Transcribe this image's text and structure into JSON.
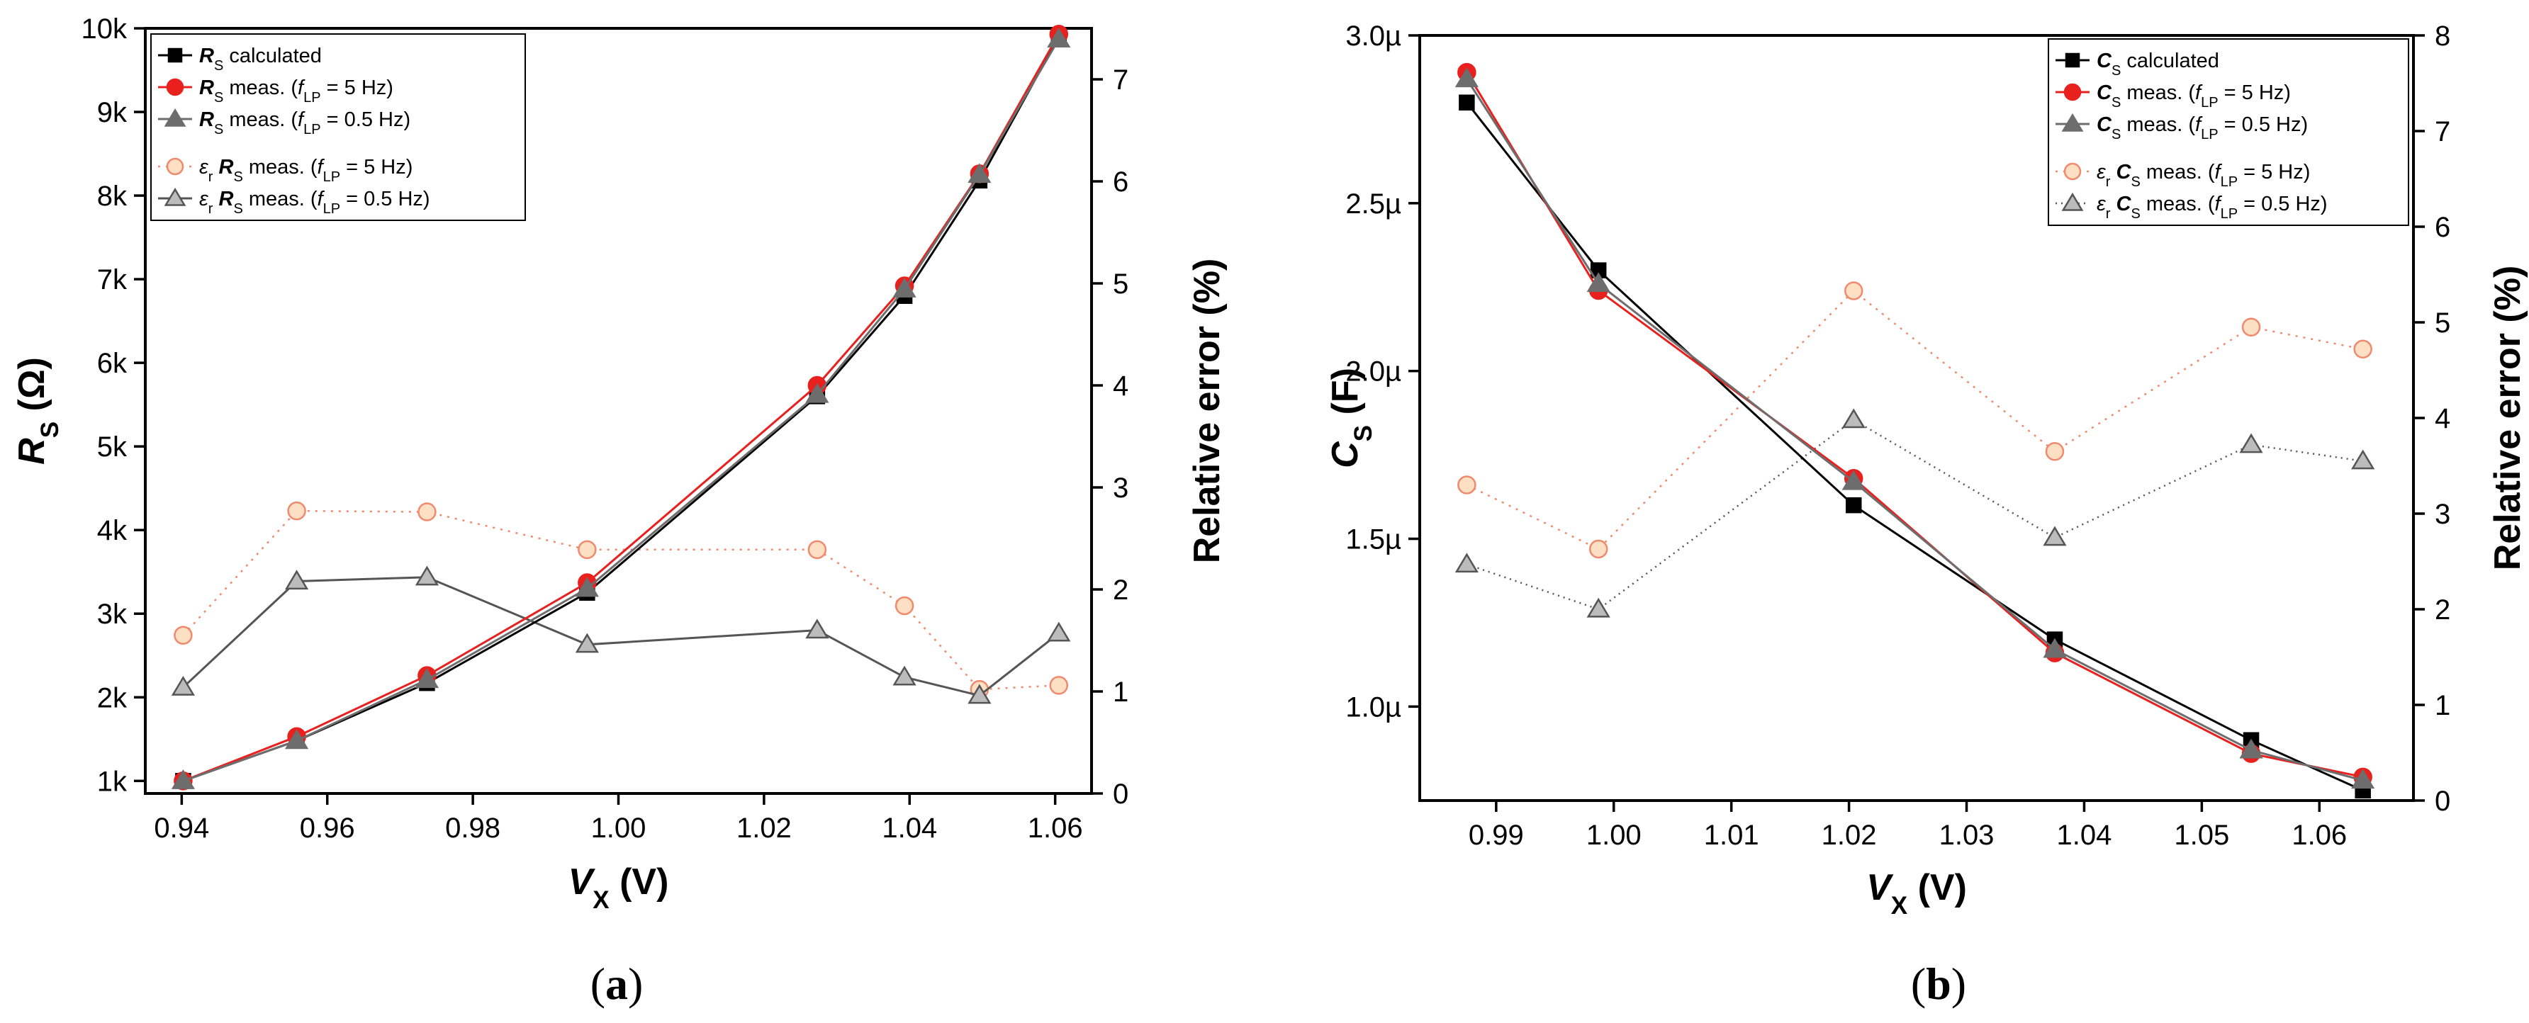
{
  "chart_data": [
    {
      "type": "line",
      "panel": "a",
      "caption": "a",
      "xlabel": {
        "symbol": "V",
        "sub": "X",
        "unit": " (V)"
      },
      "ylabel": {
        "symbol": "R",
        "sub": "S",
        "unit": " (Ω)"
      },
      "y2label": "Relative error   (%)",
      "xlim": [
        0.935,
        1.065
      ],
      "ylim": [
        850,
        10000
      ],
      "y2lim": [
        0,
        7.5
      ],
      "xticks": [
        0.94,
        0.96,
        0.98,
        1.0,
        1.02,
        1.04,
        1.06
      ],
      "xticklabels": [
        "0.94",
        "0.96",
        "0.98",
        "1.00",
        "1.02",
        "1.04",
        "1.06"
      ],
      "yticks": [
        1000,
        2000,
        3000,
        4000,
        5000,
        6000,
        7000,
        8000,
        9000,
        10000
      ],
      "yticklabels": [
        "1k",
        "2k",
        "3k",
        "4k",
        "5k",
        "6k",
        "7k",
        "8k",
        "9k",
        "10k"
      ],
      "y2ticks": [
        0,
        1,
        2,
        3,
        4,
        5,
        6,
        7
      ],
      "y2ticklabels": [
        "0",
        "1",
        "2",
        "3",
        "4",
        "5",
        "6",
        "7"
      ],
      "x": [
        0.9402,
        0.9558,
        0.9737,
        0.9957,
        1.0273,
        1.0393,
        1.0496,
        1.0605
      ],
      "legend_position": "top-left",
      "series": [
        {
          "name": "calculated",
          "sym": "R",
          "sub": "S",
          "axis": "left",
          "color": "#000000",
          "marker": "square",
          "dash": "",
          "line_width": 3,
          "filled": true,
          "legend": [
            {
              "t": "R",
              "k": "sym"
            },
            {
              "t": "S",
              "k": "sub"
            },
            {
              "t": " calculated"
            }
          ],
          "values": [
            1000,
            1480,
            2170,
            3250,
            5600,
            6800,
            8180,
            9900
          ]
        },
        {
          "name": "meas. (f_LP = 5 Hz)",
          "sym": "R",
          "sub": "S",
          "axis": "left",
          "color": "#e8201e",
          "marker": "circle",
          "dash": "",
          "line_width": 3,
          "filled": true,
          "legend": [
            {
              "t": "R",
              "k": "sym"
            },
            {
              "t": "S",
              "k": "sub"
            },
            {
              "t": " meas. ("
            },
            {
              "t": "f",
              "k": "it"
            },
            {
              "t": "LP",
              "k": "sub"
            },
            {
              "t": " = 5 Hz)"
            }
          ],
          "values": [
            1000,
            1530,
            2260,
            3370,
            5730,
            6920,
            8260,
            9930
          ]
        },
        {
          "name": "meas. (f_LP = 0.5 Hz)",
          "sym": "R",
          "sub": "S",
          "axis": "left",
          "color": "#6d6d6d",
          "marker": "triangle",
          "dash": "",
          "line_width": 3,
          "filled": true,
          "legend": [
            {
              "t": "R",
              "k": "sym"
            },
            {
              "t": "S",
              "k": "sub"
            },
            {
              "t": " meas. ("
            },
            {
              "t": "f",
              "k": "it"
            },
            {
              "t": "LP",
              "k": "sub"
            },
            {
              "t": " = 0.5 Hz)"
            }
          ],
          "values": [
            1000,
            1480,
            2210,
            3300,
            5620,
            6880,
            8250,
            9870
          ]
        },
        {
          "name": "εr RS meas. (f_LP = 5 Hz)",
          "sym": "εr",
          "axis": "right",
          "color": "#f08a6e",
          "fill": "#fde0c4",
          "marker": "circle",
          "dash": "3,8",
          "line_width": 2.5,
          "filled": false,
          "legend": [
            {
              "t": "ε",
              "k": "it"
            },
            {
              "t": "r",
              "k": "sub"
            },
            {
              "t": " "
            },
            {
              "t": "R",
              "k": "sym"
            },
            {
              "t": "S",
              "k": "sub"
            },
            {
              "t": " meas. ("
            },
            {
              "t": "f",
              "k": "it"
            },
            {
              "t": "LP",
              "k": "sub"
            },
            {
              "t": " = 5 Hz)"
            }
          ],
          "values": [
            1.55,
            2.77,
            2.76,
            2.39,
            2.39,
            1.84,
            1.02,
            1.06
          ]
        },
        {
          "name": "εr RS meas. (f_LP = 0.5 Hz)",
          "sym": "εr",
          "axis": "right",
          "color": "#555555",
          "fill": "#bcbcbc",
          "marker": "triangle",
          "dash": "",
          "line_width": 3,
          "filled": false,
          "legend": [
            {
              "t": "ε",
              "k": "it"
            },
            {
              "t": "r",
              "k": "sub"
            },
            {
              "t": " "
            },
            {
              "t": "R",
              "k": "sym"
            },
            {
              "t": "S",
              "k": "sub"
            },
            {
              "t": " meas. ("
            },
            {
              "t": "f",
              "k": "it"
            },
            {
              "t": "LP",
              "k": "sub"
            },
            {
              "t": " = 0.5 Hz)"
            }
          ],
          "values": [
            1.04,
            2.08,
            2.12,
            1.46,
            1.6,
            1.14,
            0.96,
            1.57
          ]
        }
      ]
    },
    {
      "type": "line",
      "panel": "b",
      "caption": "b",
      "xlabel": {
        "symbol": "V",
        "sub": "X",
        "unit": " (V)"
      },
      "ylabel": {
        "symbol": "C",
        "sub": "S",
        "unit": "  (F)"
      },
      "y2label": "Relative error (%)",
      "xlim": [
        0.9835,
        1.068
      ],
      "ylim": [
        0.72,
        3.0
      ],
      "y2lim": [
        0,
        8
      ],
      "xticks": [
        0.99,
        1.0,
        1.01,
        1.02,
        1.03,
        1.04,
        1.05,
        1.06
      ],
      "xticklabels": [
        "0.99",
        "1.00",
        "1.01",
        "1.02",
        "1.03",
        "1.04",
        "1.05",
        "1.06"
      ],
      "yticks": [
        1.0,
        1.5,
        2.0,
        2.5,
        3.0
      ],
      "yticklabels": [
        "1.0µ",
        "1.5µ",
        "2.0µ",
        "2.5µ",
        "3.0µ"
      ],
      "y2ticks": [
        0,
        1,
        2,
        3,
        4,
        5,
        6,
        7,
        8
      ],
      "y2ticklabels": [
        "0",
        "1",
        "2",
        "3",
        "4",
        "5",
        "6",
        "7",
        "8"
      ],
      "x": [
        0.9875,
        0.9987,
        1.0204,
        1.0375,
        1.0542,
        1.0637
      ],
      "legend_position": "top-right",
      "series": [
        {
          "name": "calculated",
          "sym": "C",
          "sub": "S",
          "axis": "left",
          "color": "#000000",
          "marker": "square",
          "dash": "",
          "line_width": 3,
          "filled": true,
          "legend": [
            {
              "t": "C",
              "k": "sym"
            },
            {
              "t": "S",
              "k": "sub"
            },
            {
              "t": " calculated"
            }
          ],
          "values": [
            2.8,
            2.3,
            1.6,
            1.2,
            0.9,
            0.75
          ]
        },
        {
          "name": "meas. (f_LP = 5 Hz)",
          "sym": "C",
          "sub": "S",
          "axis": "left",
          "color": "#e8201e",
          "marker": "circle",
          "dash": "",
          "line_width": 3,
          "filled": true,
          "legend": [
            {
              "t": "C",
              "k": "sym"
            },
            {
              "t": "S",
              "k": "sub"
            },
            {
              "t": " meas. ("
            },
            {
              "t": "f",
              "k": "it"
            },
            {
              "t": "LP",
              "k": "sub"
            },
            {
              "t": " = 5 Hz)"
            }
          ],
          "values": [
            2.89,
            2.24,
            1.68,
            1.16,
            0.86,
            0.79
          ]
        },
        {
          "name": "meas. (f_LP = 0.5 Hz)",
          "sym": "C",
          "sub": "S",
          "axis": "left",
          "color": "#6d6d6d",
          "marker": "triangle",
          "dash": "",
          "line_width": 3,
          "filled": true,
          "legend": [
            {
              "t": "C",
              "k": "sym"
            },
            {
              "t": "S",
              "k": "sub"
            },
            {
              "t": " meas. ("
            },
            {
              "t": "f",
              "k": "it"
            },
            {
              "t": "LP",
              "k": "sub"
            },
            {
              "t": " = 0.5 Hz)"
            }
          ],
          "values": [
            2.87,
            2.26,
            1.67,
            1.17,
            0.87,
            0.78
          ]
        },
        {
          "name": "εr CS meas. (f_LP = 5 Hz)",
          "sym": "εr",
          "axis": "right",
          "color": "#f08a6e",
          "fill": "#fde0c4",
          "marker": "circle",
          "dash": "3,8",
          "line_width": 2.5,
          "filled": false,
          "legend": [
            {
              "t": "ε",
              "k": "it"
            },
            {
              "t": "r",
              "k": "sub"
            },
            {
              "t": " "
            },
            {
              "t": "C",
              "k": "sym"
            },
            {
              "t": "S",
              "k": "sub"
            },
            {
              "t": " meas. ("
            },
            {
              "t": "f",
              "k": "it"
            },
            {
              "t": "LP",
              "k": "sub"
            },
            {
              "t": " = 5 Hz)"
            }
          ],
          "values": [
            3.3,
            2.63,
            5.33,
            3.65,
            4.95,
            4.72
          ]
        },
        {
          "name": "εr CS meas. (f_LP = 0.5 Hz)",
          "sym": "εr",
          "axis": "right",
          "color": "#555555",
          "fill": "#bcbcbc",
          "marker": "triangle",
          "dash": "2,6",
          "line_width": 2.5,
          "filled": false,
          "legend": [
            {
              "t": "ε",
              "k": "it"
            },
            {
              "t": "r",
              "k": "sub"
            },
            {
              "t": " "
            },
            {
              "t": "C",
              "k": "sym"
            },
            {
              "t": "S",
              "k": "sub"
            },
            {
              "t": " meas. ("
            },
            {
              "t": "f",
              "k": "it"
            },
            {
              "t": "LP",
              "k": "sub"
            },
            {
              "t": " = 0.5 Hz)"
            }
          ],
          "values": [
            2.47,
            2.0,
            3.98,
            2.75,
            3.72,
            3.55
          ]
        }
      ]
    }
  ]
}
